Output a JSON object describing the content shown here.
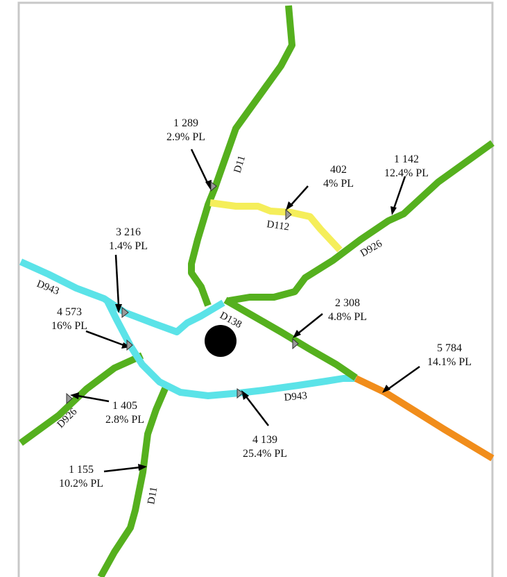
{
  "colors": {
    "green": "#55b01e",
    "cyan": "#5be3e8",
    "yellow": "#f5ee5a",
    "orange": "#f18d1b",
    "frame": "#c8c8c8",
    "center_marker": "#000000"
  },
  "roads": [
    {
      "id": "D11-north",
      "label": "D11",
      "color_key": "green"
    },
    {
      "id": "D11-south",
      "label": "D11",
      "color_key": "green"
    },
    {
      "id": "D112",
      "label": "D112",
      "color_key": "yellow"
    },
    {
      "id": "D926-east",
      "label": "D926",
      "color_key": "green"
    },
    {
      "id": "D926-west",
      "label": "D926",
      "color_key": "green"
    },
    {
      "id": "D943-north",
      "label": "D943",
      "color_key": "cyan"
    },
    {
      "id": "D943-south",
      "label": "D943",
      "color_key": "cyan"
    },
    {
      "id": "D138",
      "label": "D138",
      "color_key": "green"
    },
    {
      "id": "D138-east",
      "label": "",
      "color_key": "orange"
    }
  ],
  "counts": [
    {
      "id": "c1",
      "volume": "1 289",
      "pl": "2.9%  PL"
    },
    {
      "id": "c2",
      "volume": "402",
      "pl": "4%  PL"
    },
    {
      "id": "c3",
      "volume": "1 142",
      "pl": "12.4%  PL"
    },
    {
      "id": "c4",
      "volume": "3 216",
      "pl": "1.4%  PL"
    },
    {
      "id": "c5",
      "volume": "4 573",
      "pl": "16%  PL"
    },
    {
      "id": "c6",
      "volume": "2 308",
      "pl": "4.8%  PL"
    },
    {
      "id": "c7",
      "volume": "5 784",
      "pl": "14.1%  PL"
    },
    {
      "id": "c8",
      "volume": "1 405",
      "pl": "2.8%  PL"
    },
    {
      "id": "c9",
      "volume": "4 139",
      "pl": "25.4%  PL"
    },
    {
      "id": "c10",
      "volume": "1 155",
      "pl": "10.2%  PL"
    }
  ]
}
